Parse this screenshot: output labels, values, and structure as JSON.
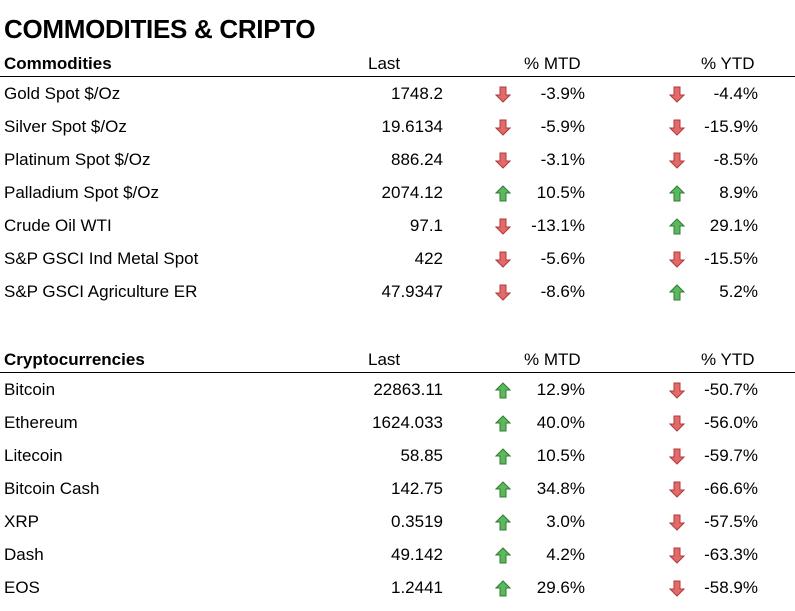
{
  "title": "COMMODITIES & CRIPTO",
  "colors": {
    "up": "#5cb85c",
    "up_dark": "#2f7d32",
    "down": "#e26a6a",
    "down_dark": "#b03a3a"
  },
  "commodities": {
    "header": {
      "name": "Commodities",
      "last": "Last",
      "mtd": "% MTD",
      "ytd": "% YTD"
    },
    "rows": [
      {
        "name": "Gold Spot   $/Oz",
        "last": "1748.2",
        "mtd": "-3.9%",
        "mtd_dir": "down",
        "ytd": "-4.4%",
        "ytd_dir": "down"
      },
      {
        "name": "Silver Spot  $/Oz",
        "last": "19.6134",
        "mtd": "-5.9%",
        "mtd_dir": "down",
        "ytd": "-15.9%",
        "ytd_dir": "down"
      },
      {
        "name": "Platinum Spot  $/Oz",
        "last": "886.24",
        "mtd": "-3.1%",
        "mtd_dir": "down",
        "ytd": "-8.5%",
        "ytd_dir": "down"
      },
      {
        "name": "Palladium Spot  $/Oz",
        "last": "2074.12",
        "mtd": "10.5%",
        "mtd_dir": "up",
        "ytd": "8.9%",
        "ytd_dir": "up"
      },
      {
        "name": "Crude Oil WTI",
        "last": "97.1",
        "mtd": "-13.1%",
        "mtd_dir": "down",
        "ytd": "29.1%",
        "ytd_dir": "up"
      },
      {
        "name": "S&P GSCI Ind Metal Spot",
        "last": "422",
        "mtd": "-5.6%",
        "mtd_dir": "down",
        "ytd": "-15.5%",
        "ytd_dir": "down"
      },
      {
        "name": "S&P GSCI Agriculture ER",
        "last": "47.9347",
        "mtd": "-8.6%",
        "mtd_dir": "down",
        "ytd": "5.2%",
        "ytd_dir": "up"
      }
    ]
  },
  "crypto": {
    "header": {
      "name": "Cryptocurrencies",
      "last": "Last",
      "mtd": "% MTD",
      "ytd": "% YTD"
    },
    "rows": [
      {
        "name": "Bitcoin",
        "last": "22863.11",
        "mtd": "12.9%",
        "mtd_dir": "up",
        "ytd": "-50.7%",
        "ytd_dir": "down"
      },
      {
        "name": "Ethereum",
        "last": "1624.033",
        "mtd": "40.0%",
        "mtd_dir": "up",
        "ytd": "-56.0%",
        "ytd_dir": "down"
      },
      {
        "name": "Litecoin",
        "last": "58.85",
        "mtd": "10.5%",
        "mtd_dir": "up",
        "ytd": "-59.7%",
        "ytd_dir": "down"
      },
      {
        "name": "Bitcoin Cash",
        "last": "142.75",
        "mtd": "34.8%",
        "mtd_dir": "up",
        "ytd": "-66.6%",
        "ytd_dir": "down"
      },
      {
        "name": "XRP",
        "last": "0.3519",
        "mtd": "3.0%",
        "mtd_dir": "up",
        "ytd": "-57.5%",
        "ytd_dir": "down"
      },
      {
        "name": "Dash",
        "last": "49.142",
        "mtd": "4.2%",
        "mtd_dir": "up",
        "ytd": "-63.3%",
        "ytd_dir": "down"
      },
      {
        "name": "EOS",
        "last": "1.2441",
        "mtd": "29.6%",
        "mtd_dir": "up",
        "ytd": "-58.9%",
        "ytd_dir": "down"
      }
    ]
  }
}
